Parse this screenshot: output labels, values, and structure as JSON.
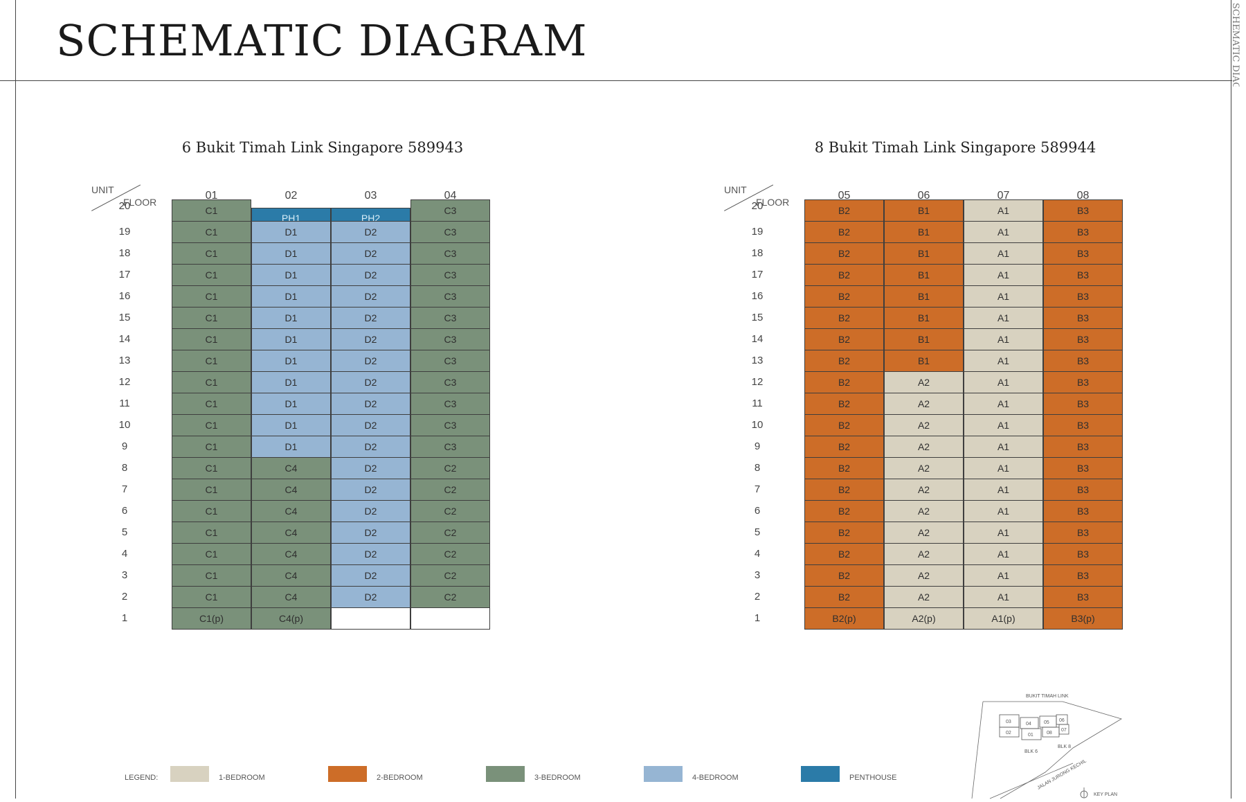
{
  "page": {
    "title": "SCHEMATIC DIAGRAM",
    "side_text": "SCHEMATIC DIAGRAM"
  },
  "colors": {
    "1-bedroom": "#d8d2c0",
    "2-bedroom": "#cd6d28",
    "3-bedroom": "#7a917a",
    "4-bedroom": "#96b5d3",
    "penthouse": "#2b7ba8",
    "empty": "#ffffff"
  },
  "header": {
    "unit": "UNIT",
    "floor": "FLOOR"
  },
  "floors": [
    "20",
    "19",
    "18",
    "17",
    "16",
    "15",
    "14",
    "13",
    "12",
    "11",
    "10",
    "9",
    "8",
    "7",
    "6",
    "5",
    "4",
    "3",
    "2",
    "1"
  ],
  "blocks": [
    {
      "title": "6 Bukit Timah Link Singapore 589943",
      "units": [
        "01",
        "02",
        "03",
        "04"
      ],
      "columns": [
        [
          {
            "label": "C1",
            "type": "3-bedroom"
          },
          {
            "label": "C1",
            "type": "3-bedroom"
          },
          {
            "label": "C1",
            "type": "3-bedroom"
          },
          {
            "label": "C1",
            "type": "3-bedroom"
          },
          {
            "label": "C1",
            "type": "3-bedroom"
          },
          {
            "label": "C1",
            "type": "3-bedroom"
          },
          {
            "label": "C1",
            "type": "3-bedroom"
          },
          {
            "label": "C1",
            "type": "3-bedroom"
          },
          {
            "label": "C1",
            "type": "3-bedroom"
          },
          {
            "label": "C1",
            "type": "3-bedroom"
          },
          {
            "label": "C1",
            "type": "3-bedroom"
          },
          {
            "label": "C1",
            "type": "3-bedroom"
          },
          {
            "label": "C1",
            "type": "3-bedroom"
          },
          {
            "label": "C1",
            "type": "3-bedroom"
          },
          {
            "label": "C1",
            "type": "3-bedroom"
          },
          {
            "label": "C1",
            "type": "3-bedroom"
          },
          {
            "label": "C1",
            "type": "3-bedroom"
          },
          {
            "label": "C1",
            "type": "3-bedroom"
          },
          {
            "label": "C1",
            "type": "3-bedroom"
          },
          {
            "label": "C1(p)",
            "type": "3-bedroom"
          }
        ],
        [
          {
            "label": "PH1",
            "type": "penthouse"
          },
          {
            "label": "D1",
            "type": "4-bedroom"
          },
          {
            "label": "D1",
            "type": "4-bedroom"
          },
          {
            "label": "D1",
            "type": "4-bedroom"
          },
          {
            "label": "D1",
            "type": "4-bedroom"
          },
          {
            "label": "D1",
            "type": "4-bedroom"
          },
          {
            "label": "D1",
            "type": "4-bedroom"
          },
          {
            "label": "D1",
            "type": "4-bedroom"
          },
          {
            "label": "D1",
            "type": "4-bedroom"
          },
          {
            "label": "D1",
            "type": "4-bedroom"
          },
          {
            "label": "D1",
            "type": "4-bedroom"
          },
          {
            "label": "D1",
            "type": "4-bedroom"
          },
          {
            "label": "C4",
            "type": "3-bedroom"
          },
          {
            "label": "C4",
            "type": "3-bedroom"
          },
          {
            "label": "C4",
            "type": "3-bedroom"
          },
          {
            "label": "C4",
            "type": "3-bedroom"
          },
          {
            "label": "C4",
            "type": "3-bedroom"
          },
          {
            "label": "C4",
            "type": "3-bedroom"
          },
          {
            "label": "C4",
            "type": "3-bedroom"
          },
          {
            "label": "C4(p)",
            "type": "3-bedroom"
          }
        ],
        [
          {
            "label": "PH2",
            "type": "penthouse"
          },
          {
            "label": "D2",
            "type": "4-bedroom"
          },
          {
            "label": "D2",
            "type": "4-bedroom"
          },
          {
            "label": "D2",
            "type": "4-bedroom"
          },
          {
            "label": "D2",
            "type": "4-bedroom"
          },
          {
            "label": "D2",
            "type": "4-bedroom"
          },
          {
            "label": "D2",
            "type": "4-bedroom"
          },
          {
            "label": "D2",
            "type": "4-bedroom"
          },
          {
            "label": "D2",
            "type": "4-bedroom"
          },
          {
            "label": "D2",
            "type": "4-bedroom"
          },
          {
            "label": "D2",
            "type": "4-bedroom"
          },
          {
            "label": "D2",
            "type": "4-bedroom"
          },
          {
            "label": "D2",
            "type": "4-bedroom"
          },
          {
            "label": "D2",
            "type": "4-bedroom"
          },
          {
            "label": "D2",
            "type": "4-bedroom"
          },
          {
            "label": "D2",
            "type": "4-bedroom"
          },
          {
            "label": "D2",
            "type": "4-bedroom"
          },
          {
            "label": "D2",
            "type": "4-bedroom"
          },
          {
            "label": "D2",
            "type": "4-bedroom"
          },
          {
            "label": "",
            "type": "empty"
          }
        ],
        [
          {
            "label": "C3",
            "type": "3-bedroom"
          },
          {
            "label": "C3",
            "type": "3-bedroom"
          },
          {
            "label": "C3",
            "type": "3-bedroom"
          },
          {
            "label": "C3",
            "type": "3-bedroom"
          },
          {
            "label": "C3",
            "type": "3-bedroom"
          },
          {
            "label": "C3",
            "type": "3-bedroom"
          },
          {
            "label": "C3",
            "type": "3-bedroom"
          },
          {
            "label": "C3",
            "type": "3-bedroom"
          },
          {
            "label": "C3",
            "type": "3-bedroom"
          },
          {
            "label": "C3",
            "type": "3-bedroom"
          },
          {
            "label": "C3",
            "type": "3-bedroom"
          },
          {
            "label": "C3",
            "type": "3-bedroom"
          },
          {
            "label": "C2",
            "type": "3-bedroom"
          },
          {
            "label": "C2",
            "type": "3-bedroom"
          },
          {
            "label": "C2",
            "type": "3-bedroom"
          },
          {
            "label": "C2",
            "type": "3-bedroom"
          },
          {
            "label": "C2",
            "type": "3-bedroom"
          },
          {
            "label": "C2",
            "type": "3-bedroom"
          },
          {
            "label": "C2",
            "type": "3-bedroom"
          },
          {
            "label": "",
            "type": "empty"
          }
        ]
      ]
    },
    {
      "title": "8 Bukit Timah Link Singapore 589944",
      "units": [
        "05",
        "06",
        "07",
        "08"
      ],
      "columns": [
        [
          {
            "label": "B2",
            "type": "2-bedroom"
          },
          {
            "label": "B2",
            "type": "2-bedroom"
          },
          {
            "label": "B2",
            "type": "2-bedroom"
          },
          {
            "label": "B2",
            "type": "2-bedroom"
          },
          {
            "label": "B2",
            "type": "2-bedroom"
          },
          {
            "label": "B2",
            "type": "2-bedroom"
          },
          {
            "label": "B2",
            "type": "2-bedroom"
          },
          {
            "label": "B2",
            "type": "2-bedroom"
          },
          {
            "label": "B2",
            "type": "2-bedroom"
          },
          {
            "label": "B2",
            "type": "2-bedroom"
          },
          {
            "label": "B2",
            "type": "2-bedroom"
          },
          {
            "label": "B2",
            "type": "2-bedroom"
          },
          {
            "label": "B2",
            "type": "2-bedroom"
          },
          {
            "label": "B2",
            "type": "2-bedroom"
          },
          {
            "label": "B2",
            "type": "2-bedroom"
          },
          {
            "label": "B2",
            "type": "2-bedroom"
          },
          {
            "label": "B2",
            "type": "2-bedroom"
          },
          {
            "label": "B2",
            "type": "2-bedroom"
          },
          {
            "label": "B2",
            "type": "2-bedroom"
          },
          {
            "label": "B2(p)",
            "type": "2-bedroom"
          }
        ],
        [
          {
            "label": "B1",
            "type": "2-bedroom"
          },
          {
            "label": "B1",
            "type": "2-bedroom"
          },
          {
            "label": "B1",
            "type": "2-bedroom"
          },
          {
            "label": "B1",
            "type": "2-bedroom"
          },
          {
            "label": "B1",
            "type": "2-bedroom"
          },
          {
            "label": "B1",
            "type": "2-bedroom"
          },
          {
            "label": "B1",
            "type": "2-bedroom"
          },
          {
            "label": "B1",
            "type": "2-bedroom"
          },
          {
            "label": "A2",
            "type": "1-bedroom"
          },
          {
            "label": "A2",
            "type": "1-bedroom"
          },
          {
            "label": "A2",
            "type": "1-bedroom"
          },
          {
            "label": "A2",
            "type": "1-bedroom"
          },
          {
            "label": "A2",
            "type": "1-bedroom"
          },
          {
            "label": "A2",
            "type": "1-bedroom"
          },
          {
            "label": "A2",
            "type": "1-bedroom"
          },
          {
            "label": "A2",
            "type": "1-bedroom"
          },
          {
            "label": "A2",
            "type": "1-bedroom"
          },
          {
            "label": "A2",
            "type": "1-bedroom"
          },
          {
            "label": "A2",
            "type": "1-bedroom"
          },
          {
            "label": "A2(p)",
            "type": "1-bedroom"
          }
        ],
        [
          {
            "label": "A1",
            "type": "1-bedroom"
          },
          {
            "label": "A1",
            "type": "1-bedroom"
          },
          {
            "label": "A1",
            "type": "1-bedroom"
          },
          {
            "label": "A1",
            "type": "1-bedroom"
          },
          {
            "label": "A1",
            "type": "1-bedroom"
          },
          {
            "label": "A1",
            "type": "1-bedroom"
          },
          {
            "label": "A1",
            "type": "1-bedroom"
          },
          {
            "label": "A1",
            "type": "1-bedroom"
          },
          {
            "label": "A1",
            "type": "1-bedroom"
          },
          {
            "label": "A1",
            "type": "1-bedroom"
          },
          {
            "label": "A1",
            "type": "1-bedroom"
          },
          {
            "label": "A1",
            "type": "1-bedroom"
          },
          {
            "label": "A1",
            "type": "1-bedroom"
          },
          {
            "label": "A1",
            "type": "1-bedroom"
          },
          {
            "label": "A1",
            "type": "1-bedroom"
          },
          {
            "label": "A1",
            "type": "1-bedroom"
          },
          {
            "label": "A1",
            "type": "1-bedroom"
          },
          {
            "label": "A1",
            "type": "1-bedroom"
          },
          {
            "label": "A1",
            "type": "1-bedroom"
          },
          {
            "label": "A1(p)",
            "type": "1-bedroom"
          }
        ],
        [
          {
            "label": "B3",
            "type": "2-bedroom"
          },
          {
            "label": "B3",
            "type": "2-bedroom"
          },
          {
            "label": "B3",
            "type": "2-bedroom"
          },
          {
            "label": "B3",
            "type": "2-bedroom"
          },
          {
            "label": "B3",
            "type": "2-bedroom"
          },
          {
            "label": "B3",
            "type": "2-bedroom"
          },
          {
            "label": "B3",
            "type": "2-bedroom"
          },
          {
            "label": "B3",
            "type": "2-bedroom"
          },
          {
            "label": "B3",
            "type": "2-bedroom"
          },
          {
            "label": "B3",
            "type": "2-bedroom"
          },
          {
            "label": "B3",
            "type": "2-bedroom"
          },
          {
            "label": "B3",
            "type": "2-bedroom"
          },
          {
            "label": "B3",
            "type": "2-bedroom"
          },
          {
            "label": "B3",
            "type": "2-bedroom"
          },
          {
            "label": "B3",
            "type": "2-bedroom"
          },
          {
            "label": "B3",
            "type": "2-bedroom"
          },
          {
            "label": "B3",
            "type": "2-bedroom"
          },
          {
            "label": "B3",
            "type": "2-bedroom"
          },
          {
            "label": "B3",
            "type": "2-bedroom"
          },
          {
            "label": "B3(p)",
            "type": "2-bedroom"
          }
        ]
      ]
    }
  ],
  "legend": {
    "label": "LEGEND:",
    "items": [
      {
        "text": "1-BEDROOM",
        "type": "1-bedroom"
      },
      {
        "text": "2-BEDROOM",
        "type": "2-bedroom"
      },
      {
        "text": "3-BEDROOM",
        "type": "3-bedroom"
      },
      {
        "text": "4-BEDROOM",
        "type": "4-bedroom"
      },
      {
        "text": "PENTHOUSE",
        "type": "penthouse"
      }
    ]
  },
  "keyplan": {
    "road_top": "BUKIT TIMAH LINK",
    "road_bottom": "JALAN JURONG KECHIL",
    "blk6": "BLK 6",
    "blk8": "BLK 8",
    "stacks": [
      "03",
      "04",
      "05",
      "06",
      "02",
      "01",
      "08",
      "07"
    ],
    "label": "KEY PLAN"
  }
}
